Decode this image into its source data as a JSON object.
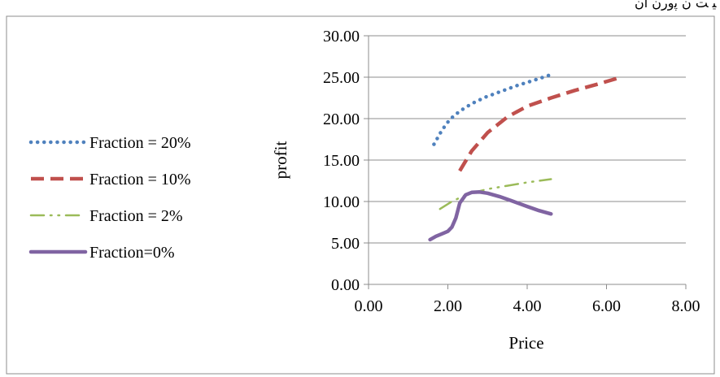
{
  "page": {
    "top_caption": "ﻴ ﺖ ﻥ ﭘﻭﺭﻥ ﺍﻥ"
  },
  "colors": {
    "grid": "#8c8c8c",
    "axis": "#8c8c8c",
    "frame": "#8c8c8c",
    "background": "#ffffff"
  },
  "chart_data": {
    "type": "line",
    "title": "",
    "xlabel": "Price",
    "ylabel": "profit",
    "xlim": [
      0,
      8
    ],
    "ylim": [
      0,
      30
    ],
    "xticks": [
      "0.00",
      "2.00",
      "4.00",
      "6.00",
      "8.00"
    ],
    "yticks": [
      "0.00",
      "5.00",
      "10.00",
      "15.00",
      "20.00",
      "25.00",
      "30.00"
    ],
    "grid": "horizontal",
    "legend_position": "left",
    "series": [
      {
        "name": "Fraction = 20%",
        "color": "#4f81bd",
        "style": "dotted",
        "x": [
          1.65,
          1.85,
          2.05,
          2.3,
          2.6,
          2.95,
          3.35,
          3.75,
          4.15,
          4.6
        ],
        "y": [
          16.9,
          18.6,
          19.9,
          20.9,
          21.8,
          22.6,
          23.3,
          24.0,
          24.6,
          25.3
        ]
      },
      {
        "name": "Fraction = 10%",
        "color": "#c0504d",
        "style": "dashed",
        "x": [
          2.3,
          2.6,
          3.0,
          3.5,
          4.0,
          4.6,
          5.2,
          5.8,
          6.3
        ],
        "y": [
          13.7,
          16.1,
          18.3,
          20.2,
          21.5,
          22.5,
          23.4,
          24.2,
          24.9
        ]
      },
      {
        "name": "Fraction = 2%",
        "color": "#9bbb59",
        "style": "dashdotdot",
        "x": [
          1.8,
          2.1,
          2.5,
          3.0,
          3.5,
          4.0,
          4.6
        ],
        "y": [
          9.1,
          10.0,
          10.9,
          11.5,
          11.9,
          12.3,
          12.7
        ]
      },
      {
        "name": "Fraction=0%",
        "color": "#8064a2",
        "style": "solid",
        "x": [
          1.55,
          1.7,
          1.85,
          2.0,
          2.1,
          2.2,
          2.3,
          2.45,
          2.6,
          2.8,
          3.0,
          3.3,
          3.6,
          4.0,
          4.3,
          4.6
        ],
        "y": [
          5.4,
          5.8,
          6.1,
          6.4,
          6.9,
          8.0,
          9.8,
          10.8,
          11.1,
          11.15,
          11.0,
          10.6,
          10.1,
          9.4,
          8.9,
          8.5
        ]
      }
    ]
  }
}
